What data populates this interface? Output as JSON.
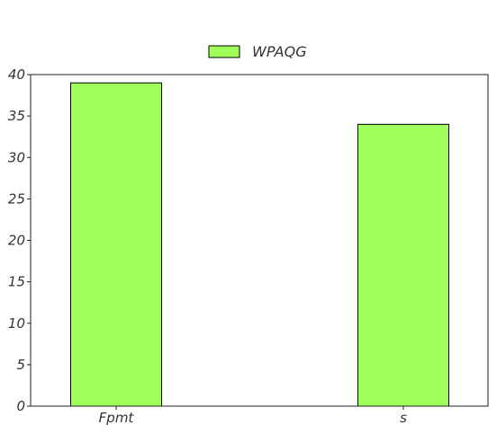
{
  "chart_data": {
    "type": "bar",
    "categories": [
      "Fpmt",
      "s"
    ],
    "series": [
      {
        "name": "WPAQG",
        "values": [
          39,
          34
        ]
      }
    ],
    "yticks": [
      "0",
      "5",
      "10",
      "15",
      "20",
      "25",
      "30",
      "35",
      "40"
    ],
    "ylim": [
      0,
      40
    ],
    "grid": false,
    "legend_position": "top-center",
    "bar_color": "#a1ff5a",
    "edge_color": "#000000"
  }
}
